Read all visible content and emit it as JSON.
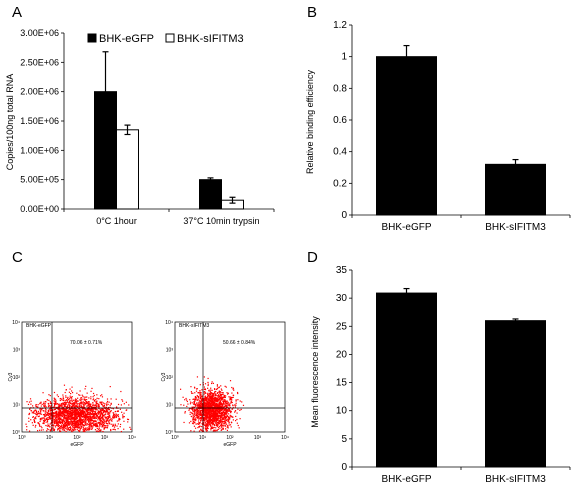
{
  "panels": {
    "a_letter": "A",
    "b_letter": "B",
    "c_letter": "C",
    "d_letter": "D"
  },
  "chart_data": [
    {
      "panel": "A",
      "type": "bar",
      "categories": [
        "0°C 1hour",
        "37°C 10min trypsin"
      ],
      "series": [
        {
          "name": "BHK-eGFP",
          "values": [
            2000000,
            500000
          ],
          "errors": [
            680000,
            30000
          ],
          "color": "#000000"
        },
        {
          "name": "BHK-sIFITM3",
          "values": [
            1350000,
            150000
          ],
          "errors": [
            80000,
            50000
          ],
          "color": "#ffffff"
        }
      ],
      "ylabel": "Copies/100ng total RNA",
      "xlabel": "",
      "ylim": [
        0,
        3000000
      ],
      "yticks": [
        0,
        500000,
        1000000,
        1500000,
        2000000,
        2500000,
        3000000
      ],
      "ytick_labels": [
        "0.00E+00",
        "5.00E+05",
        "1.00E+06",
        "1.50E+06",
        "2.00E+06",
        "2.50E+06",
        "3.00E+06"
      ],
      "legend": "top"
    },
    {
      "panel": "B",
      "type": "bar",
      "categories": [
        "BHK-eGFP",
        "BHK-sIFITM3"
      ],
      "values": [
        1.0,
        0.32
      ],
      "errors": [
        0.07,
        0.03
      ],
      "ylabel": "Relative binding efficiency",
      "xlabel": "",
      "ylim": [
        0,
        1.2
      ],
      "yticks": [
        0,
        0.2,
        0.4,
        0.6,
        0.8,
        1,
        1.2
      ],
      "ytick_labels": [
        "0",
        "0.2",
        "0.4",
        "0.6",
        "0.8",
        "1",
        "1.2"
      ]
    },
    {
      "panel": "C",
      "type": "scatter",
      "plots": [
        {
          "title": "BHK-eGFP",
          "annotation": "70.06 ± 0.71%",
          "xlabel": "eGFP",
          "ylabel": "Cy3",
          "color": "#ff0000"
        },
        {
          "title": "BHK-sIFITM3",
          "annotation": "50.66 ± 0.84%",
          "xlabel": "eGFP",
          "ylabel": "Cy3",
          "color": "#ff0000"
        }
      ],
      "log_scale": true,
      "axis_range_log10": [
        0,
        4
      ],
      "xtick_labels": [
        "10⁰",
        "10¹",
        "10²",
        "10³",
        "10⁴"
      ],
      "ytick_labels": [
        "10⁰",
        "10¹",
        "10²",
        "10³",
        "10⁴"
      ]
    },
    {
      "panel": "D",
      "type": "bar",
      "categories": [
        "BHK-eGFP",
        "BHK-sIFITM3"
      ],
      "values": [
        30.9,
        26.0
      ],
      "errors": [
        0.8,
        0.3
      ],
      "ylabel": "Mean fluorescence intensity",
      "xlabel": "",
      "ylim": [
        0,
        35
      ],
      "yticks": [
        0,
        5,
        10,
        15,
        20,
        25,
        30,
        35
      ],
      "ytick_labels": [
        "0",
        "5",
        "10",
        "15",
        "20",
        "25",
        "30",
        "35"
      ]
    }
  ]
}
